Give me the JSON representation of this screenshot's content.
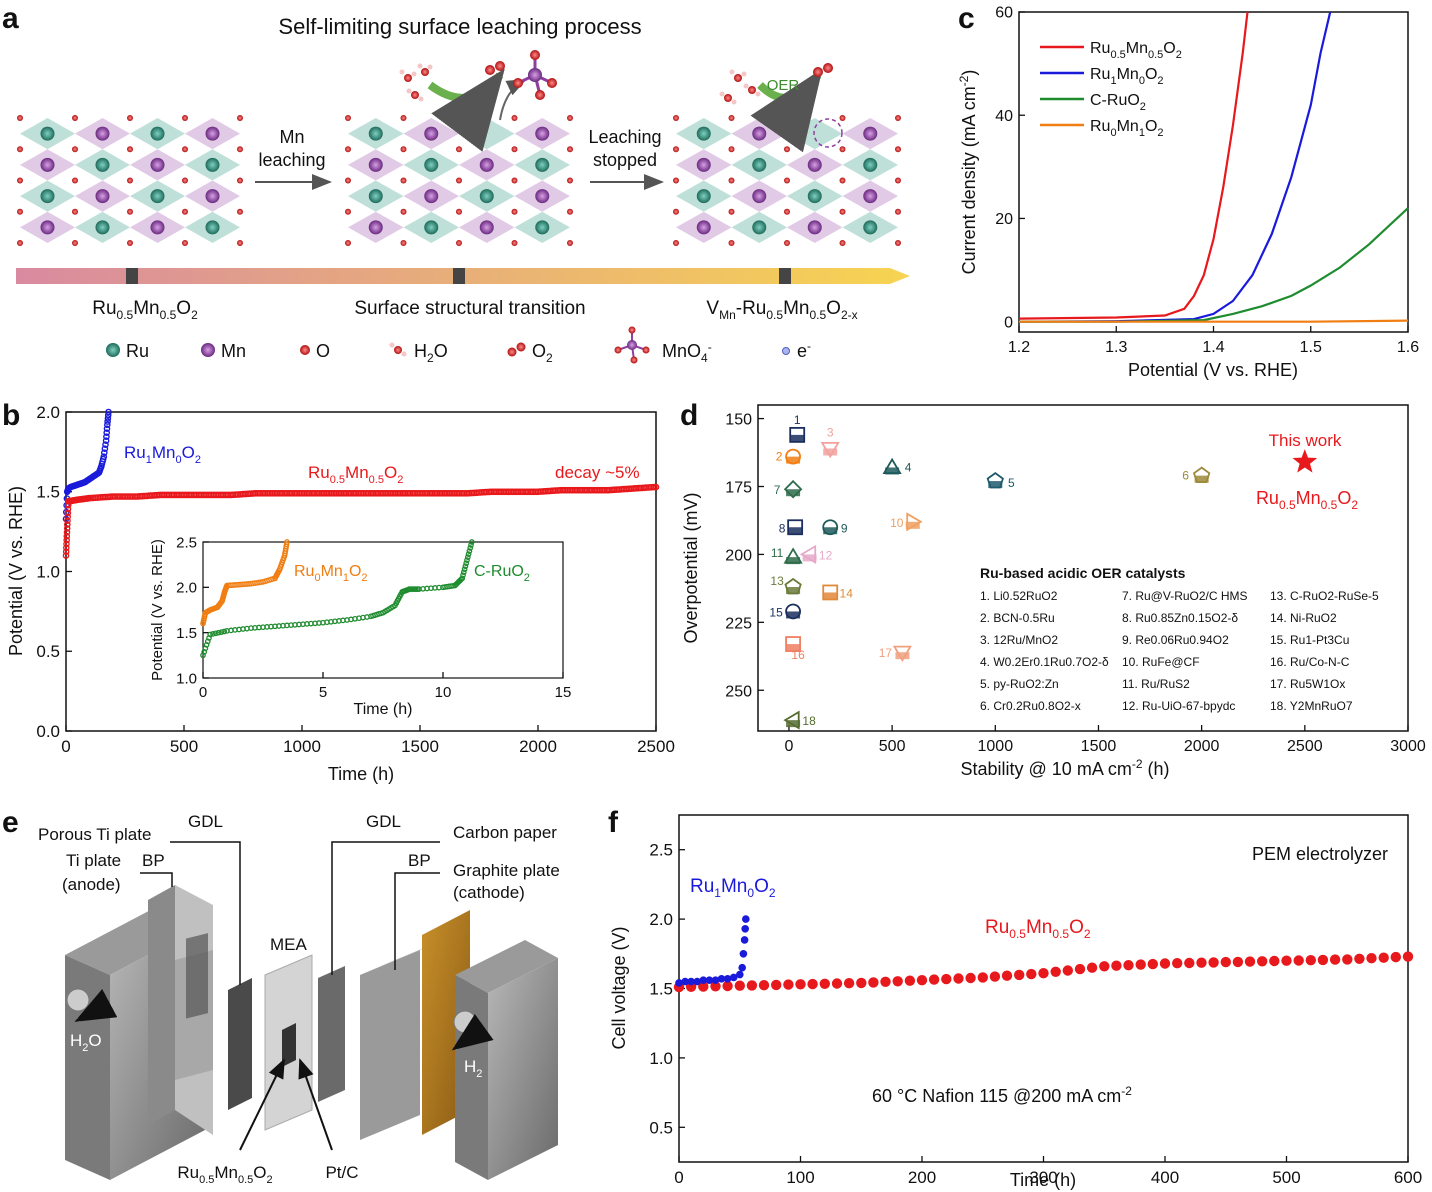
{
  "panels": {
    "a": "a",
    "b": "b",
    "c": "c",
    "d": "d",
    "e": "e",
    "f": "f"
  },
  "panel_a": {
    "title": "Self-limiting surface leaching process",
    "step1": [
      "Mn",
      "leaching"
    ],
    "step2": [
      "Leaching",
      "stopped"
    ],
    "oer": "OER",
    "stage1": "Ru0.5Mn0.5O2",
    "stage2": "Surface structural transition",
    "stage3": "VMn-Ru0.5Mn0.5O2-x",
    "legend": [
      "Ru",
      "Mn",
      "O",
      "H2O",
      "O2",
      "MnO4-",
      "e-"
    ],
    "colors": {
      "ru": "#2e8b7a",
      "mn": "#8e3fa0",
      "o": "#d62828",
      "bar_start": "#d98aa0",
      "bar_end": "#f7d451"
    }
  },
  "chart_data": [
    {
      "id": "c",
      "type": "line",
      "xlabel": "Potential (V vs. RHE)",
      "ylabel": "Current density (mA cm-2)",
      "xlim": [
        1.2,
        1.6
      ],
      "ylim": [
        -2,
        60
      ],
      "xticks": [
        "1.2",
        "1.3",
        "1.4",
        "1.5",
        "1.6"
      ],
      "yticks": [
        "0",
        "20",
        "40",
        "60"
      ],
      "legend_position": "top-left",
      "series": [
        {
          "name": "Ru0.5Mn0.5O2",
          "color": "#e8191c",
          "x": [
            1.2,
            1.3,
            1.35,
            1.37,
            1.38,
            1.39,
            1.4,
            1.41,
            1.42,
            1.43,
            1.435
          ],
          "y": [
            0.6,
            0.8,
            1.2,
            2.5,
            5,
            9,
            16,
            26,
            38,
            52,
            60
          ]
        },
        {
          "name": "Ru1Mn0O2",
          "color": "#1a1adb",
          "x": [
            1.2,
            1.3,
            1.38,
            1.4,
            1.42,
            1.44,
            1.46,
            1.48,
            1.5,
            1.51,
            1.52
          ],
          "y": [
            0,
            0.1,
            0.5,
            1.5,
            4,
            9,
            17,
            28,
            42,
            52,
            60
          ]
        },
        {
          "name": "C-RuO2",
          "color": "#1e8c2e",
          "x": [
            1.2,
            1.3,
            1.39,
            1.42,
            1.45,
            1.48,
            1.5,
            1.53,
            1.56,
            1.6
          ],
          "y": [
            0,
            0,
            0.3,
            1.5,
            3,
            5,
            7,
            10.5,
            15,
            22
          ]
        },
        {
          "name": "Ru0Mn1O2",
          "color": "#f07e12",
          "x": [
            1.2,
            1.3,
            1.4,
            1.5,
            1.6
          ],
          "y": [
            0,
            0,
            0,
            0,
            0.2
          ]
        }
      ]
    },
    {
      "id": "b",
      "type": "scatter",
      "xlabel": "Time (h)",
      "ylabel": "Potential (V vs. RHE)",
      "xlim": [
        0,
        2500
      ],
      "ylim": [
        0,
        2.0
      ],
      "xticks": [
        "0",
        "500",
        "1000",
        "1500",
        "2000",
        "2500"
      ],
      "yticks": [
        "0.0",
        "0.5",
        "1.0",
        "1.5",
        "2.0"
      ],
      "series": [
        {
          "name": "Ru1Mn0O2",
          "color": "#1a1adb",
          "x": [
            0,
            5,
            10,
            20,
            40,
            60,
            80,
            100,
            120,
            140,
            150,
            160,
            170,
            175,
            180
          ],
          "y": [
            1.33,
            1.5,
            1.52,
            1.53,
            1.54,
            1.55,
            1.56,
            1.58,
            1.6,
            1.62,
            1.66,
            1.72,
            1.82,
            1.92,
            2.0
          ]
        },
        {
          "name": "Ru0.5Mn0.5O2",
          "color": "#e8191c",
          "x": [
            0,
            10,
            50,
            100,
            200,
            300,
            400,
            500,
            600,
            700,
            800,
            900,
            1000,
            1100,
            1200,
            1300,
            1400,
            1500,
            1600,
            1700,
            1800,
            1900,
            2000,
            2100,
            2200,
            2300,
            2400,
            2500
          ],
          "y": [
            1.1,
            1.44,
            1.45,
            1.46,
            1.47,
            1.47,
            1.48,
            1.48,
            1.48,
            1.48,
            1.49,
            1.49,
            1.49,
            1.49,
            1.49,
            1.49,
            1.49,
            1.49,
            1.49,
            1.49,
            1.5,
            1.5,
            1.5,
            1.51,
            1.51,
            1.51,
            1.52,
            1.53
          ]
        }
      ],
      "annotation": "decay ~5%"
    },
    {
      "id": "b-inset",
      "type": "scatter",
      "xlabel": "Time (h)",
      "ylabel": "Potential (V vs. RHE)",
      "xlim": [
        0,
        15
      ],
      "ylim": [
        1.0,
        2.5
      ],
      "xticks": [
        "0",
        "5",
        "10",
        "15"
      ],
      "yticks": [
        "1.0",
        "1.5",
        "2.0",
        "2.5"
      ],
      "series": [
        {
          "name": "Ru0Mn1O2",
          "color": "#f07e12",
          "x": [
            0,
            0.1,
            0.3,
            0.6,
            0.8,
            0.9,
            1.0,
            1.5,
            2,
            2.5,
            3.0,
            3.2,
            3.4,
            3.5
          ],
          "y": [
            1.6,
            1.72,
            1.75,
            1.78,
            1.85,
            1.95,
            2.02,
            2.03,
            2.04,
            2.06,
            2.1,
            2.2,
            2.35,
            2.5
          ]
        },
        {
          "name": "C-RuO2",
          "color": "#1e8c2e",
          "x": [
            0,
            0.3,
            1,
            2,
            3,
            4,
            5,
            6,
            7,
            7.5,
            8,
            8.3,
            8.6,
            9,
            10,
            10.5,
            10.8,
            11,
            11.2
          ],
          "y": [
            1.25,
            1.48,
            1.52,
            1.55,
            1.57,
            1.59,
            1.61,
            1.64,
            1.68,
            1.72,
            1.8,
            1.95,
            1.98,
            1.98,
            2.0,
            2.02,
            2.1,
            2.3,
            2.5
          ]
        }
      ]
    },
    {
      "id": "d",
      "type": "scatter",
      "xlabel": "Stability @ 10 mA cm-2 (h)",
      "ylabel": "Overpotential (mV)",
      "xlim": [
        -150,
        3000
      ],
      "ylim": [
        265,
        145
      ],
      "y_reversed": true,
      "xticks": [
        "0",
        "500",
        "1000",
        "1500",
        "2000",
        "2500",
        "3000"
      ],
      "yticks": [
        "150",
        "175",
        "200",
        "225",
        "250"
      ],
      "legend_title": "Ru-based acidic OER catalysts",
      "points": [
        {
          "id": "1",
          "x": 40,
          "y": 156,
          "color": "#1b2f5e"
        },
        {
          "id": "2",
          "x": 20,
          "y": 164,
          "color": "#f07e12"
        },
        {
          "id": "3",
          "x": 200,
          "y": 161,
          "color": "#f2a19e"
        },
        {
          "id": "4",
          "x": 500,
          "y": 168,
          "color": "#1e5a5a"
        },
        {
          "id": "5",
          "x": 1000,
          "y": 173,
          "color": "#1e5a6e"
        },
        {
          "id": "6",
          "x": 2000,
          "y": 171,
          "color": "#9c8a3a"
        },
        {
          "id": "7",
          "x": 20,
          "y": 176,
          "color": "#2e6b4a"
        },
        {
          "id": "8",
          "x": 30,
          "y": 190,
          "color": "#1b2f5e"
        },
        {
          "id": "9",
          "x": 200,
          "y": 190,
          "color": "#1e5a5a"
        },
        {
          "id": "10",
          "x": 600,
          "y": 188,
          "color": "#f0a060"
        },
        {
          "id": "11",
          "x": 20,
          "y": 201,
          "color": "#2e6b4a"
        },
        {
          "id": "12",
          "x": 100,
          "y": 200,
          "color": "#e6a8c8"
        },
        {
          "id": "13",
          "x": 20,
          "y": 212,
          "color": "#6b7a3a"
        },
        {
          "id": "14",
          "x": 200,
          "y": 214,
          "color": "#e08a3a"
        },
        {
          "id": "15",
          "x": 20,
          "y": 221,
          "color": "#1b2f5e"
        },
        {
          "id": "16",
          "x": 20,
          "y": 233,
          "color": "#f07e62"
        },
        {
          "id": "17",
          "x": 550,
          "y": 236,
          "color": "#f0a080"
        },
        {
          "id": "18",
          "x": 20,
          "y": 261,
          "color": "#556b2f"
        },
        {
          "id": "This work",
          "x": 2500,
          "y": 166,
          "color": "#e8191c"
        }
      ],
      "this_work_label": "This work",
      "this_work_name": "Ru0.5Mn0.5O2",
      "legend_col1": [
        "1. Li0.52RuO2",
        "2. BCN-0.5Ru",
        "3. 12Ru/MnO2",
        "4. W0.2Er0.1Ru0.7O2-δ",
        "5. py-RuO2:Zn",
        "6. Cr0.2Ru0.8O2-x"
      ],
      "legend_col2": [
        "7. Ru@V-RuO2/C HMS",
        "8. Ru0.85Zn0.15O2-δ",
        "9. Re0.06Ru0.94O2",
        "10. RuFe@CF",
        "11. Ru/RuS2",
        "12. Ru-UiO-67-bpydc"
      ],
      "legend_col3": [
        "13. C-RuO2-RuSe-5",
        "14. Ni-RuO2",
        "15. Ru1-Pt3Cu",
        "16. Ru/Co-N-C",
        "17. Ru5W1Ox",
        "18. Y2MnRuO7"
      ]
    },
    {
      "id": "f",
      "type": "scatter",
      "xlabel": "Time (h)",
      "ylabel": "Cell voltage (V)",
      "xlim": [
        0,
        600
      ],
      "ylim": [
        0.25,
        2.75
      ],
      "xticks": [
        "0",
        "100",
        "200",
        "300",
        "400",
        "500",
        "600"
      ],
      "yticks": [
        "0.5",
        "1.0",
        "1.5",
        "2.0",
        "2.5"
      ],
      "title": "PEM electrolyzer",
      "conditions": "60 °C    Nafion 115    @200 mA cm-2",
      "series": [
        {
          "name": "Ru1Mn0O2",
          "color": "#1a1adb",
          "x": [
            0,
            5,
            10,
            15,
            20,
            25,
            30,
            35,
            40,
            45,
            50,
            52,
            53,
            54,
            54.5,
            55
          ],
          "y": [
            1.54,
            1.55,
            1.55,
            1.55,
            1.56,
            1.56,
            1.56,
            1.57,
            1.57,
            1.58,
            1.6,
            1.65,
            1.75,
            1.85,
            1.93,
            2.0
          ]
        },
        {
          "name": "Ru0.5Mn0.5O2",
          "color": "#e8191c",
          "x": [
            0,
            50,
            100,
            150,
            200,
            250,
            300,
            350,
            400,
            450,
            500,
            550,
            600
          ],
          "y": [
            1.51,
            1.52,
            1.53,
            1.54,
            1.56,
            1.58,
            1.61,
            1.66,
            1.68,
            1.69,
            1.7,
            1.71,
            1.73
          ]
        }
      ]
    }
  ],
  "panel_e": {
    "labels": {
      "porous_ti": "Porous Ti plate",
      "gdl_left": "GDL",
      "bp_left": "BP",
      "ti_plate": "Ti plate",
      "anode": "(anode)",
      "mea": "MEA",
      "gdl_right": "GDL",
      "carbon_paper": "Carbon paper",
      "bp_right": "BP",
      "graphite": "Graphite plate",
      "cathode": "(cathode)",
      "h2o": "H2O",
      "h2": "H2",
      "catalyst_anode": "Ru0.5Mn0.5O2",
      "catalyst_cathode": "Pt/C"
    }
  }
}
